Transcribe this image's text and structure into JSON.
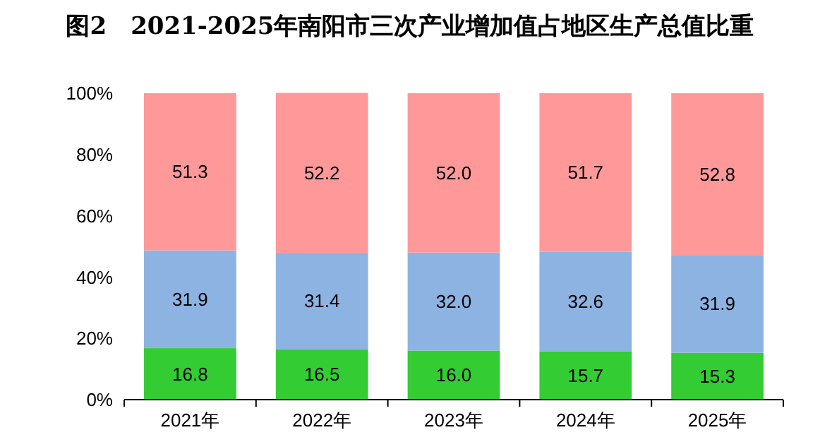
{
  "chart_data": {
    "type": "bar",
    "title": "图2　2021-2025年南阳市三次产业增加值占地区生产总值比重",
    "categories": [
      "2021年",
      "2022年",
      "2023年",
      "2024年",
      "2025年"
    ],
    "stacked": true,
    "grid": false,
    "ylim": [
      0,
      100
    ],
    "yticks": [
      {
        "value": 0,
        "label": "0%"
      },
      {
        "value": 20,
        "label": "20%"
      },
      {
        "value": 40,
        "label": "40%"
      },
      {
        "value": 60,
        "label": "60%"
      },
      {
        "value": 80,
        "label": "80%"
      },
      {
        "value": 100,
        "label": "100%"
      }
    ],
    "series": [
      {
        "color": "#33cc33",
        "values": [
          16.8,
          16.5,
          16.0,
          15.7,
          15.3
        ],
        "value_labels": [
          "16.8",
          "16.5",
          "16.0",
          "15.7",
          "15.3"
        ]
      },
      {
        "color": "#8db3e2",
        "values": [
          31.9,
          31.4,
          32.0,
          32.6,
          31.9
        ],
        "value_labels": [
          "31.9",
          "31.4",
          "32.0",
          "32.6",
          "31.9"
        ]
      },
      {
        "color": "#ff9999",
        "values": [
          51.3,
          52.2,
          52.0,
          51.7,
          52.8
        ],
        "value_labels": [
          "51.3",
          "52.2",
          "52.0",
          "51.7",
          "52.8"
        ]
      }
    ]
  }
}
